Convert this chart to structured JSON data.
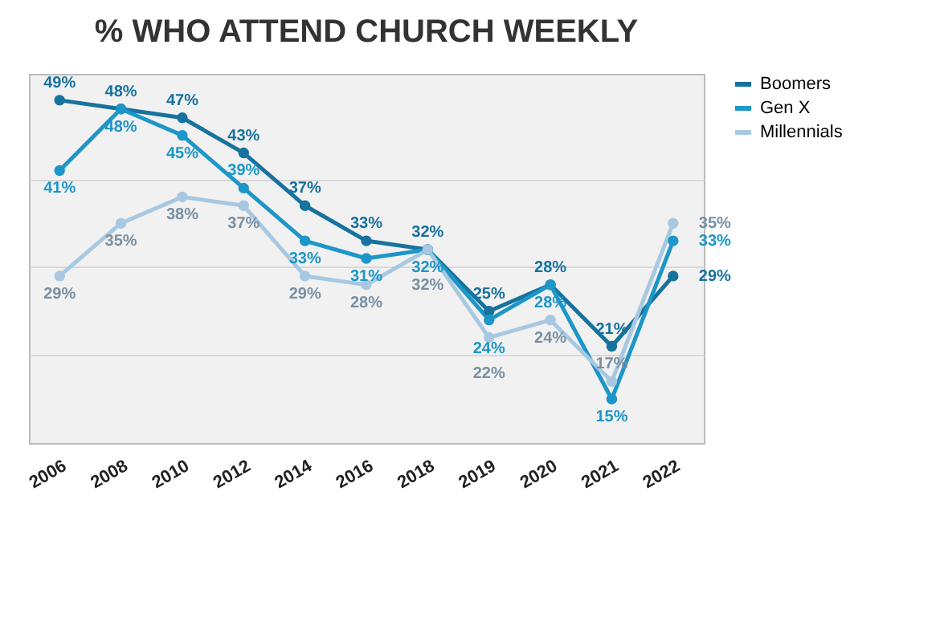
{
  "chart_data": {
    "type": "line",
    "title": "% WHO ATTEND CHURCH WEEKLY",
    "categories": [
      "2006",
      "2008",
      "2010",
      "2012",
      "2014",
      "2016",
      "2018",
      "2019",
      "2020",
      "2021",
      "2022"
    ],
    "series": [
      {
        "name": "Boomers",
        "color": "#17729e",
        "values": [
          49,
          48,
          47,
          43,
          37,
          33,
          32,
          25,
          28,
          21,
          29
        ],
        "value_labels": [
          "49%",
          "48%",
          "47%",
          "43%",
          "37%",
          "33%",
          "32%",
          "25%",
          "28%",
          "21%",
          "29%"
        ]
      },
      {
        "name": "Gen X",
        "color": "#1d96c8",
        "values": [
          41,
          48,
          45,
          39,
          33,
          31,
          32,
          24,
          28,
          15,
          33
        ],
        "value_labels": [
          "41%",
          "48%",
          "45%",
          "39%",
          "33%",
          "31%",
          "32%",
          "24%",
          "28%",
          "15%",
          "33%"
        ]
      },
      {
        "name": "Millennials",
        "color": "#a8c8e2",
        "values": [
          29,
          35,
          38,
          37,
          29,
          28,
          32,
          22,
          24,
          17,
          35
        ],
        "value_labels": [
          "29%",
          "35%",
          "38%",
          "37%",
          "29%",
          "28%",
          "32%",
          "22%",
          "24%",
          "17%",
          "35%"
        ]
      }
    ],
    "ylim": [
      10,
      52
    ],
    "yticks": [
      {
        "value": 20,
        "label": null
      },
      {
        "value": 30,
        "label": null
      },
      {
        "value": 40,
        "label": null
      }
    ],
    "tick_labels": "x",
    "grid": "y",
    "legend": "right",
    "marker": "circle",
    "line_style": "solid"
  }
}
